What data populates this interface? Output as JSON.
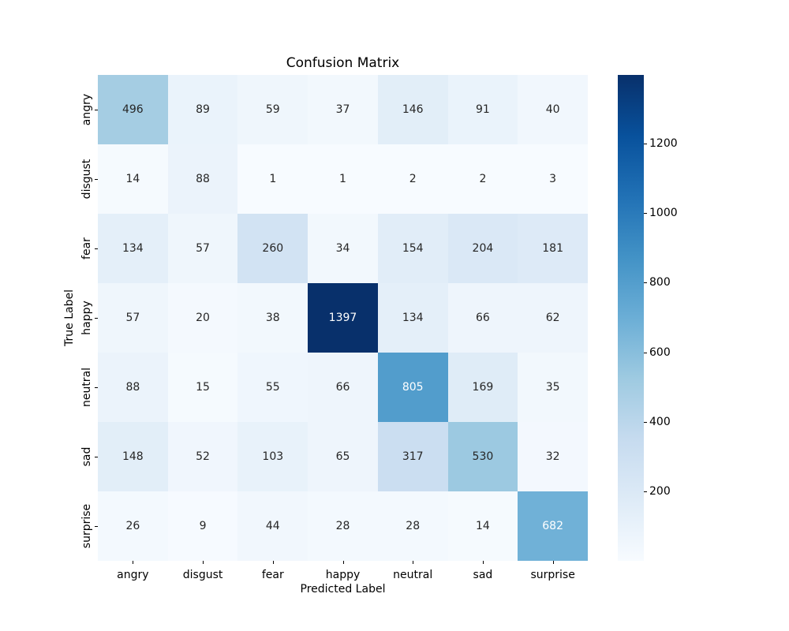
{
  "chart_data": {
    "type": "heatmap",
    "title": "Confusion Matrix",
    "xlabel": "Predicted Label",
    "ylabel": "True Label",
    "categories": [
      "angry",
      "disgust",
      "fear",
      "happy",
      "neutral",
      "sad",
      "surprise"
    ],
    "rows": [
      [
        496,
        89,
        59,
        37,
        146,
        91,
        40
      ],
      [
        14,
        88,
        1,
        1,
        2,
        2,
        3
      ],
      [
        134,
        57,
        260,
        34,
        154,
        204,
        181
      ],
      [
        57,
        20,
        38,
        1397,
        134,
        66,
        62
      ],
      [
        88,
        15,
        55,
        66,
        805,
        169,
        35
      ],
      [
        148,
        52,
        103,
        65,
        317,
        530,
        32
      ],
      [
        26,
        9,
        44,
        28,
        28,
        14,
        682
      ]
    ],
    "vmin": 1,
    "vmax": 1397,
    "colormap": "Blues",
    "colormap_stops": [
      "#f7fbff",
      "#deebf7",
      "#c6dbef",
      "#9ecae1",
      "#6baed6",
      "#4292c6",
      "#2171b5",
      "#08519c",
      "#08306b"
    ],
    "colorbar_ticks": [
      200,
      400,
      600,
      800,
      1000,
      1200
    ],
    "annotation_text_dark": "#262626",
    "annotation_text_light": "#ffffff",
    "legend_position": "right-colorbar",
    "grid": false
  }
}
